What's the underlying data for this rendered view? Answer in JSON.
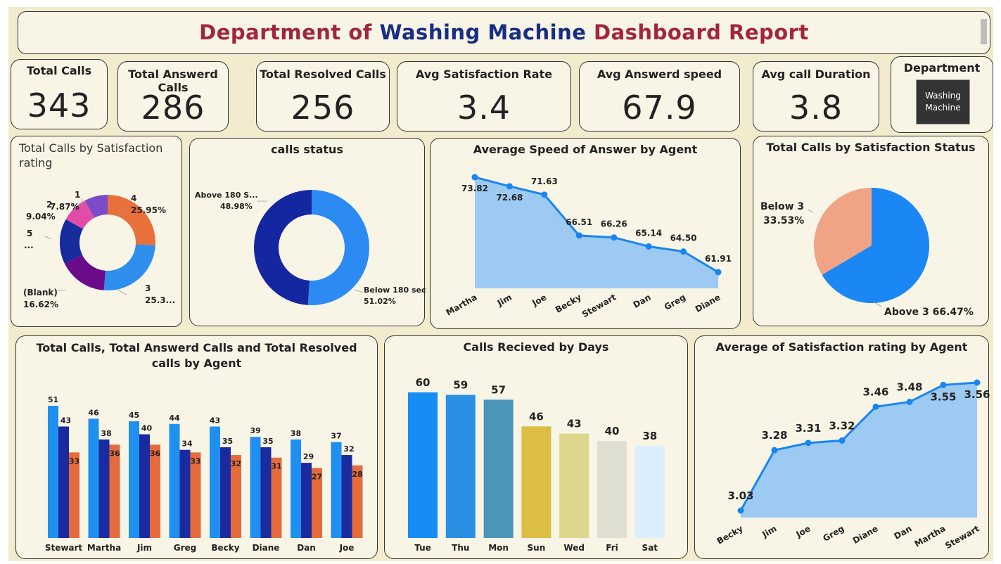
{
  "header": {
    "title_part1": "Department of",
    "title_part2": "Washing Machine",
    "title_part3": "Dashboard Report",
    "color_red": "#a2263a",
    "color_blue": "#172e85"
  },
  "kpis": [
    {
      "title": "Total Calls",
      "value": "343"
    },
    {
      "title": "Total Answerd Calls",
      "value": "286"
    },
    {
      "title": "Total Resolved Calls",
      "value": "256"
    },
    {
      "title": "Avg Satisfaction Rate",
      "value": "3.4"
    },
    {
      "title": "Avg Answerd speed",
      "value": "67.9"
    },
    {
      "title": "Avg call Duration",
      "value": "3.8"
    }
  ],
  "department": {
    "title": "Department",
    "button_label": "Washing Machine"
  },
  "charts": {
    "satisfaction_rating": {
      "title": "Total Calls by Satisfaction rating",
      "labels": {
        "r4": "4",
        "r4_pct": "25.95%",
        "r3": "3",
        "r3_pct": "25.3...",
        "blank": "(Blank)",
        "blank_pct": "16.62%",
        "r5": "5",
        "r5_pct": "...",
        "r2": "2",
        "r2_pct": "9.04%",
        "r1": "1",
        "r1_pct": "7.87%"
      }
    },
    "calls_status": {
      "title": "calls status",
      "above_label": "Above 180 S...",
      "above_pct": "48.98%",
      "below_label": "Below 180 sec",
      "below_pct": "51.02%"
    },
    "speed_by_agent": {
      "title": "Average Speed of Answer by Agent"
    },
    "satisfaction_status": {
      "title": "Total Calls by Satisfaction Status",
      "below_label": "Below 3",
      "below_pct": "33.53%",
      "above_label": "Above 3 66.47%"
    },
    "calls_by_agent": {
      "title": "Total Calls, Total Answerd Calls and Total Resolved calls by Agent"
    },
    "calls_by_days": {
      "title": "Calls Recieved by Days"
    },
    "satisfaction_by_agent": {
      "title": "Average of Satisfaction rating by Agent"
    }
  },
  "chart_data": [
    {
      "type": "pie",
      "title": "Total Calls by Satisfaction rating",
      "categories": [
        "4",
        "3",
        "(Blank)",
        "5",
        "2",
        "1"
      ],
      "values": [
        25.95,
        25.3,
        16.62,
        15.22,
        9.04,
        7.87
      ],
      "colors": [
        "#e8703a",
        "#2e8fec",
        "#6a0b8a",
        "#152c9c",
        "#e14ca8",
        "#7c4bc8"
      ]
    },
    {
      "type": "pie",
      "title": "calls status",
      "categories": [
        "Below 180 sec",
        "Above 180 S..."
      ],
      "values": [
        51.02,
        48.98
      ],
      "colors": [
        "#2b8bf2",
        "#1426a0"
      ]
    },
    {
      "type": "area",
      "title": "Average Speed of Answer by Agent",
      "categories": [
        "Martha",
        "Jim",
        "Joe",
        "Becky",
        "Stewart",
        "Dan",
        "Greg",
        "Diane"
      ],
      "values": [
        73.82,
        72.68,
        71.63,
        66.51,
        66.26,
        65.14,
        64.5,
        61.91
      ],
      "ylim": [
        61.91,
        73.82
      ]
    },
    {
      "type": "pie",
      "title": "Total Calls by Satisfaction Status",
      "categories": [
        "Above 3",
        "Below 3"
      ],
      "values": [
        66.47,
        33.53
      ],
      "colors": [
        "#1a87f5",
        "#f0a385"
      ]
    },
    {
      "type": "bar",
      "title": "Total Calls, Total Answerd Calls and Total Resolved calls by Agent",
      "categories": [
        "Stewart",
        "Martha",
        "Jim",
        "Greg",
        "Becky",
        "Diane",
        "Dan",
        "Joe"
      ],
      "series": [
        {
          "values": [
            51,
            46,
            45,
            44,
            43,
            39,
            38,
            37
          ],
          "color": "#1f8ff0"
        },
        {
          "values": [
            43,
            38,
            40,
            34,
            35,
            35,
            29,
            32
          ],
          "color": "#1a2ba0"
        },
        {
          "values": [
            33,
            36,
            36,
            33,
            32,
            31,
            27,
            28
          ],
          "color": "#e56b3c"
        }
      ],
      "ylim": [
        0,
        51
      ]
    },
    {
      "type": "bar",
      "title": "Calls Recieved by Days",
      "categories": [
        "Tue",
        "Thu",
        "Mon",
        "Sun",
        "Wed",
        "Fri",
        "Sat"
      ],
      "values": [
        60,
        59,
        57,
        46,
        43,
        40,
        38
      ],
      "colors": [
        "#168cf7",
        "#2a90e4",
        "#4a95b8",
        "#dcbe44",
        "#ddd68d",
        "#dfe0d1",
        "#dcedfc"
      ],
      "ylim": [
        0,
        60
      ]
    },
    {
      "type": "area",
      "title": "Average of Satisfaction rating by Agent",
      "categories": [
        "Becky",
        "Jim",
        "Joe",
        "Greg",
        "Diane",
        "Dan",
        "Martha",
        "Stewart"
      ],
      "values": [
        3.03,
        3.28,
        3.31,
        3.32,
        3.46,
        3.48,
        3.55,
        3.56
      ],
      "ylim": [
        3.03,
        3.56
      ]
    }
  ]
}
